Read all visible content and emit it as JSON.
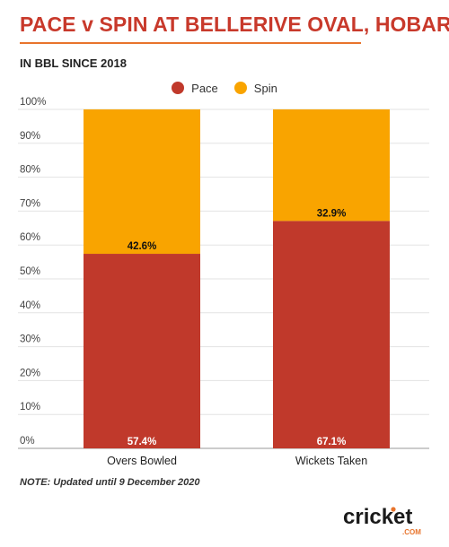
{
  "title": "PACE v SPIN AT BELLERIVE OVAL, HOBART",
  "subtitle": "IN BBL SINCE 2018",
  "note": "NOTE: Updated until 9 December 2020",
  "logo": {
    "text": "cricket",
    "sub": ".COM"
  },
  "colors": {
    "pace": "#c0392b",
    "spin": "#f9a400",
    "title": "#c8392b",
    "rule": "#e8742c"
  },
  "chart_data": {
    "type": "bar",
    "stacked": true,
    "categories": [
      "Overs Bowled",
      "Wickets Taken"
    ],
    "series": [
      {
        "name": "Pace",
        "values": [
          57.4,
          67.1
        ],
        "labels": [
          "57.4%",
          "67.1%"
        ],
        "color": "#c0392b"
      },
      {
        "name": "Spin",
        "values": [
          42.6,
          32.9
        ],
        "labels": [
          "42.6%",
          "32.9%"
        ],
        "color": "#f9a400"
      }
    ],
    "ylim": [
      0,
      100
    ],
    "yticks": [
      "0%",
      "10%",
      "20%",
      "30%",
      "40%",
      "50%",
      "60%",
      "70%",
      "80%",
      "90%",
      "100%"
    ],
    "grid": true,
    "legend": "top-center"
  }
}
